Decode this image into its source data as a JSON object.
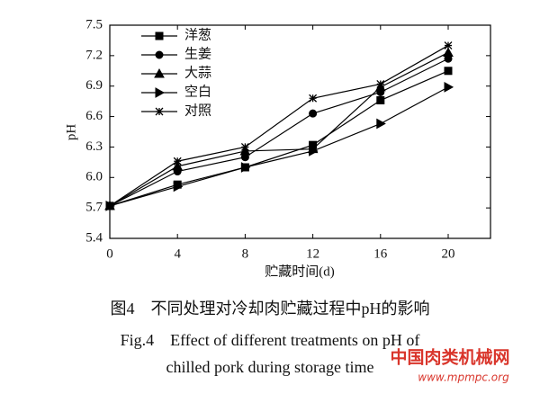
{
  "chart_data": {
    "type": "line",
    "x_label": "贮藏时间(d)",
    "y_label": "pH",
    "x": [
      0,
      4,
      8,
      12,
      16,
      20
    ],
    "xlim": [
      0,
      22.5
    ],
    "xticks": [
      0,
      4,
      8,
      12,
      16,
      20
    ],
    "ylim": [
      5.4,
      7.5
    ],
    "yticks": [
      5.4,
      5.7,
      {
        "value": 6,
        "label": "6.0"
      },
      6.3,
      6.6,
      6.9,
      7.2,
      7.5
    ],
    "legend": "upper left",
    "color": "#000000",
    "series": [
      {
        "name": "洋葱",
        "marker": "square",
        "values": [
          5.72,
          5.93,
          6.1,
          6.32,
          6.76,
          7.05
        ]
      },
      {
        "name": "生姜",
        "marker": "circle",
        "values": [
          5.72,
          6.06,
          6.2,
          6.63,
          6.84,
          7.17
        ]
      },
      {
        "name": "大蒜",
        "marker": "triangle",
        "values": [
          5.72,
          6.11,
          6.26,
          6.28,
          6.89,
          7.23
        ]
      },
      {
        "name": "空白",
        "marker": "triangle-right",
        "values": [
          5.72,
          5.91,
          6.1,
          6.26,
          6.53,
          6.89
        ]
      },
      {
        "name": "对照",
        "marker": "star",
        "values": [
          5.72,
          6.16,
          6.3,
          6.78,
          6.92,
          7.3
        ]
      }
    ]
  },
  "caption": {
    "cn": "图4　不同处理对冷却肉贮藏过程中pH的影响",
    "en_line1": "Fig.4　Effect of different treatments on pH of",
    "en_line2": "chilled pork during storage time"
  },
  "watermark": {
    "name": "中国肉类机械网",
    "url": "www.mpmpc.org"
  }
}
